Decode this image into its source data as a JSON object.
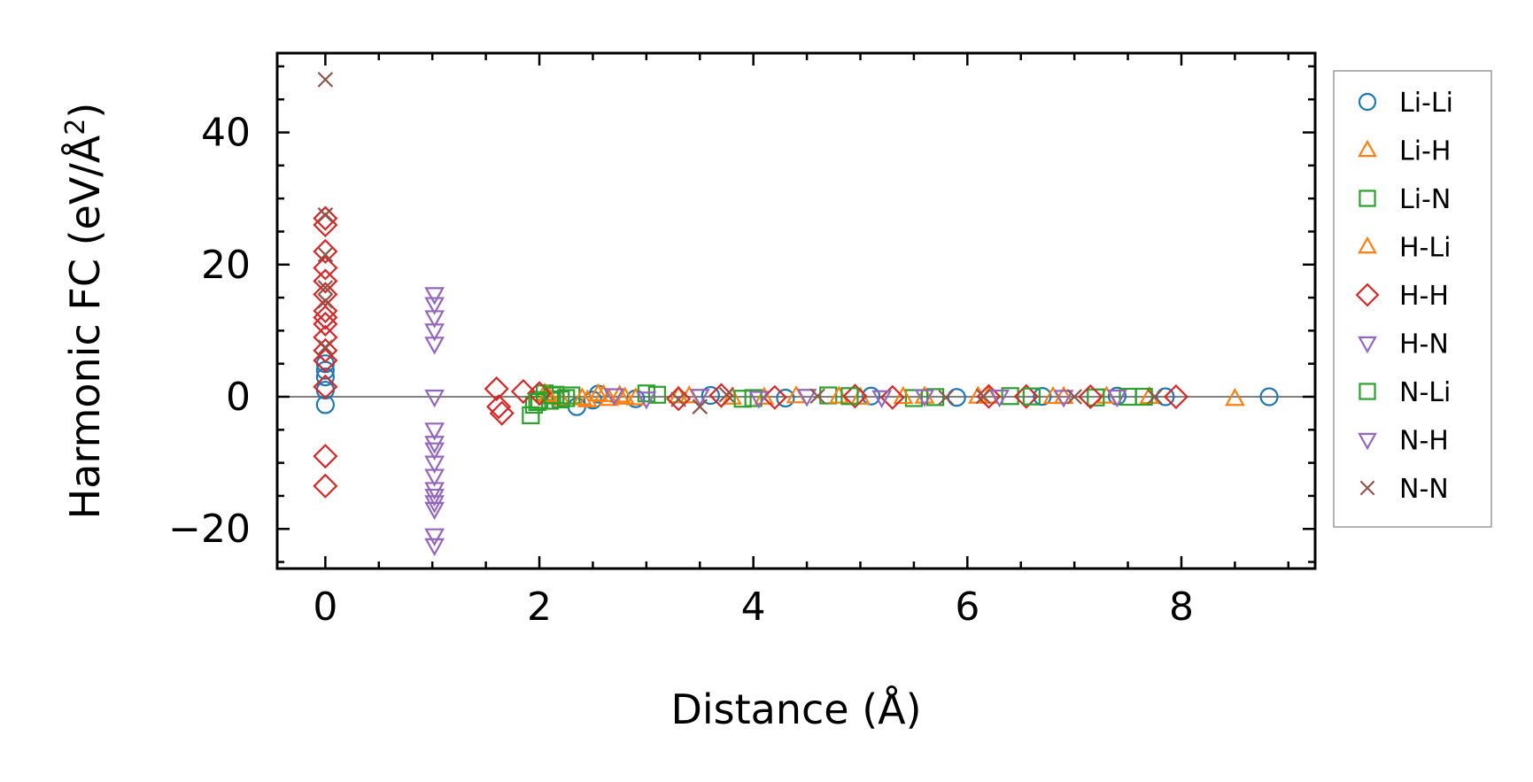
{
  "chart_data": {
    "type": "scatter",
    "title": "",
    "xlabel": "Distance (Å)",
    "ylabel_main": "Harmonic FC (eV/Å",
    "ylabel_sup": "2",
    "ylabel_close": ")",
    "xlim": [
      -0.45,
      9.25
    ],
    "ylim": [
      -26,
      52
    ],
    "xticks": [
      0,
      2,
      4,
      6,
      8
    ],
    "xtick_labels": [
      "0",
      "2",
      "4",
      "6",
      "8"
    ],
    "yticks": [
      -20,
      0,
      20,
      40
    ],
    "ytick_labels": [
      "−20",
      "0",
      "20",
      "40"
    ],
    "zero_line": true,
    "grid": false,
    "legend_position": "outside-right",
    "series": [
      {
        "name": "Li-Li",
        "marker": "circle",
        "color": "#1f77b4",
        "x": [
          0,
          0,
          0,
          0,
          0,
          2.35,
          2.5,
          2.55,
          2.9,
          3.6,
          4.3,
          5.1,
          5.9,
          6.7,
          7.4,
          7.85,
          8.82
        ],
        "y": [
          5,
          3,
          1,
          -1.2,
          4,
          -1.5,
          -0.5,
          0.4,
          -0.3,
          0.2,
          -0.2,
          0.1,
          -0.1,
          0.05,
          0.1,
          0,
          0
        ]
      },
      {
        "name": "Li-H",
        "marker": "triangle-up",
        "color": "#ff7f0e",
        "x": [
          2.05,
          2.2,
          2.45,
          2.55,
          2.65,
          2.75,
          2.9,
          3.3,
          3.8,
          4.4,
          5.0,
          5.6,
          6.2,
          6.8,
          7.3,
          7.7,
          8.5
        ],
        "y": [
          0.5,
          -0.3,
          -0.5,
          0.4,
          -0.3,
          0.2,
          -0.2,
          0.1,
          -0.1,
          0.1,
          -0.1,
          0.05,
          0.05,
          0,
          0.05,
          0,
          -0.3
        ]
      },
      {
        "name": "Li-N",
        "marker": "square",
        "color": "#2ca02c",
        "x": [
          1.92,
          1.95,
          2.0,
          2.05,
          2.1,
          2.15,
          2.2,
          2.3,
          3.0,
          3.9,
          4.7,
          5.5,
          6.4,
          7.2,
          7.65
        ],
        "y": [
          -2.8,
          -1.2,
          -0.5,
          0.5,
          -0.6,
          0.3,
          -0.4,
          0.2,
          0.5,
          -0.3,
          0.2,
          -0.2,
          0.1,
          -0.1,
          0
        ]
      },
      {
        "name": "H-Li",
        "marker": "triangle-up",
        "color": "#ff7f0e",
        "x": [
          2.08,
          2.4,
          2.6,
          2.8,
          3.4,
          4.1,
          4.8,
          5.4,
          6.1,
          6.9
        ],
        "y": [
          0.3,
          -0.2,
          0.3,
          -0.1,
          0.1,
          -0.1,
          0.05,
          0,
          0.05,
          0
        ]
      },
      {
        "name": "H-H",
        "marker": "diamond",
        "color": "#d62728",
        "x": [
          0,
          0,
          0,
          0,
          0,
          0,
          0,
          0,
          0,
          0,
          0,
          0,
          0,
          0,
          0,
          1.6,
          1.62,
          1.65,
          1.85,
          2.0,
          3.3,
          3.7,
          4.2,
          4.95,
          5.3,
          6.2,
          6.55,
          7.15,
          7.95
        ],
        "y": [
          27,
          26,
          22,
          19.5,
          17.5,
          15.5,
          13,
          11,
          9,
          7,
          5.5,
          1.5,
          -9,
          -13.5,
          12,
          1.2,
          -1.5,
          -2.5,
          0.8,
          0.5,
          -0.3,
          0.2,
          -0.1,
          0.1,
          -0.1,
          0.05,
          0.05,
          0,
          0
        ]
      },
      {
        "name": "H-N",
        "marker": "triangle-down",
        "color": "#9467bd",
        "x": [
          1.02,
          1.02,
          1.02,
          1.02,
          1.02,
          1.02,
          1.02,
          1.02,
          1.02,
          1.02,
          1.02,
          1.02,
          1.02,
          1.02,
          1.02,
          1.02,
          1.02
        ],
        "y": [
          15.5,
          14,
          12,
          10,
          8,
          0,
          -5,
          -7,
          -8,
          -10,
          -12,
          -14,
          -15,
          -16,
          -17,
          -21,
          -22.5
        ]
      },
      {
        "name": "N-Li",
        "marker": "square",
        "color": "#2ca02c",
        "x": [
          1.98,
          2.12,
          2.25,
          3.1,
          4.0,
          4.9,
          5.7,
          6.6,
          7.5
        ],
        "y": [
          -0.8,
          0.2,
          -0.2,
          0.3,
          -0.2,
          0.1,
          -0.05,
          0.05,
          0
        ]
      },
      {
        "name": "N-H",
        "marker": "triangle-down",
        "color": "#9467bd",
        "x": [
          2.7,
          3.0,
          3.5,
          4.05,
          4.5,
          5.2,
          5.6,
          6.3,
          6.9,
          7.4
        ],
        "y": [
          0.2,
          -0.3,
          0.1,
          -0.2,
          0.1,
          -0.1,
          0.05,
          0,
          -0.05,
          0
        ]
      },
      {
        "name": "N-N",
        "marker": "x",
        "color": "#8c564b",
        "x": [
          0,
          0,
          0,
          0,
          0,
          0,
          3.3,
          3.5,
          3.75,
          4.6,
          5.8,
          6.15,
          7.0,
          7.75
        ],
        "y": [
          48,
          27.5,
          21.5,
          16.5,
          14.5,
          7.5,
          -0.4,
          -1.5,
          0.3,
          0.1,
          -0.1,
          0.05,
          0,
          0
        ]
      }
    ]
  }
}
